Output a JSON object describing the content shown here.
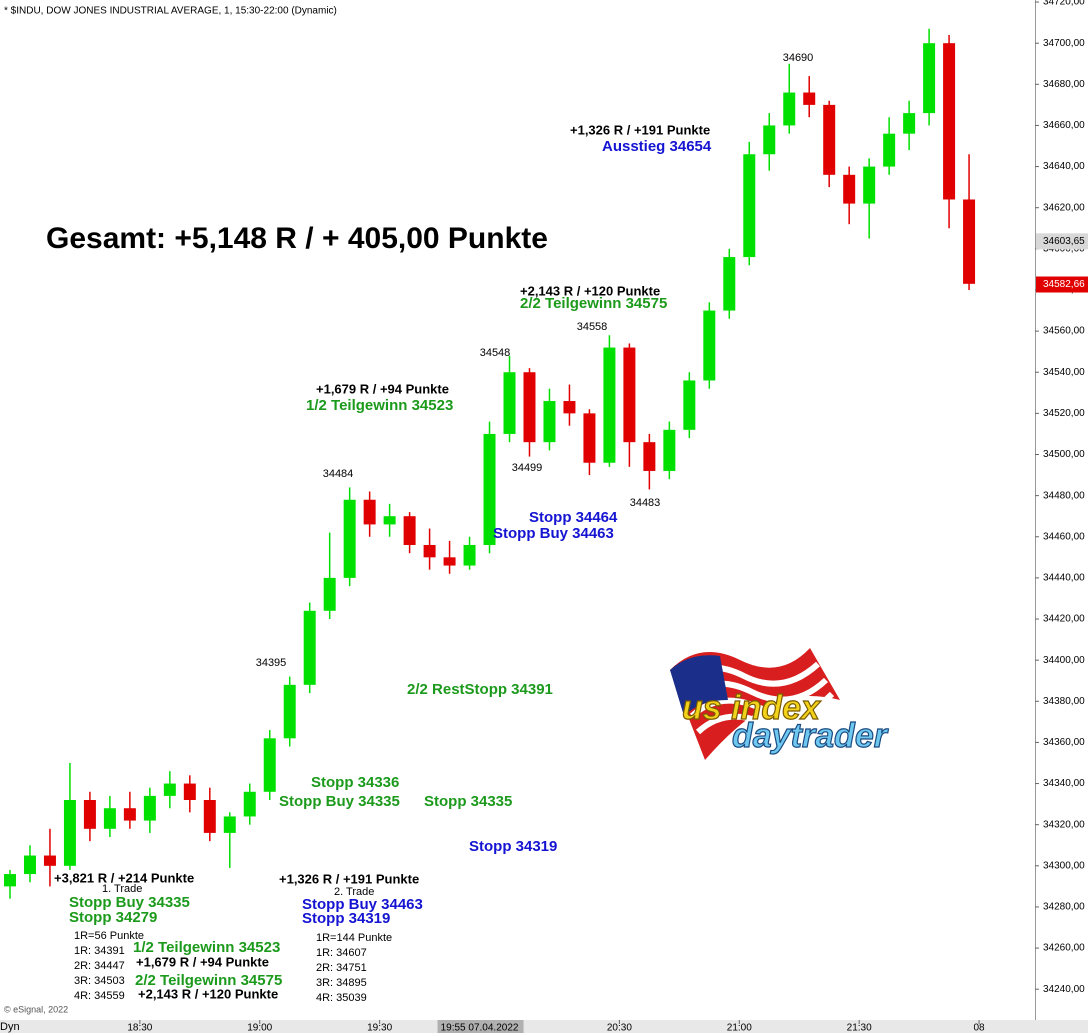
{
  "chart_data": {
    "type": "candlestick",
    "title": "* $INDU, DOW JONES INDUSTRIAL AVERAGE, 1, 15:30-22:00 (Dynamic)",
    "up_color": "#00e000",
    "down_color": "#e00000",
    "x": [
      "17:55",
      "18:00",
      "18:05",
      "18:10",
      "18:15",
      "18:20",
      "18:25",
      "18:30",
      "18:35",
      "18:40",
      "18:45",
      "18:50",
      "18:55",
      "19:00",
      "19:05",
      "19:10",
      "19:15",
      "19:20",
      "19:25",
      "19:30",
      "19:35",
      "19:40",
      "19:45",
      "19:50",
      "19:55",
      "20:00",
      "20:05",
      "20:10",
      "20:15",
      "20:20",
      "20:25",
      "20:30",
      "20:35",
      "20:40",
      "20:45",
      "20:50",
      "20:55",
      "21:00",
      "21:05",
      "21:10",
      "21:15",
      "21:20",
      "21:25",
      "21:30",
      "21:35",
      "21:40",
      "21:45",
      "21:50",
      "21:55"
    ],
    "open": [
      34290,
      34296,
      34305,
      34300,
      34332,
      34318,
      34328,
      34322,
      34334,
      34340,
      34332,
      34316,
      34324,
      34336,
      34362,
      34388,
      34424,
      34440,
      34478,
      34466,
      34470,
      34456,
      34450,
      34446,
      34456,
      34510,
      34540,
      34506,
      34526,
      34520,
      34496,
      34552,
      34506,
      34492,
      34512,
      34536,
      34570,
      34596,
      34646,
      34660,
      34676,
      34670,
      34636,
      34622,
      34640,
      34656,
      34666,
      34700,
      34624
    ],
    "high": [
      34298,
      34310,
      34318,
      34350,
      34336,
      34334,
      34336,
      34338,
      34346,
      34344,
      34338,
      34326,
      34340,
      34366,
      34392,
      34428,
      34462,
      34484,
      34482,
      34476,
      34472,
      34464,
      34458,
      34460,
      34516,
      34548,
      34542,
      34532,
      34534,
      34522,
      34558,
      34554,
      34510,
      34516,
      34540,
      34574,
      34600,
      34652,
      34666,
      34690,
      34684,
      34672,
      34640,
      34644,
      34664,
      34672,
      34707,
      34704,
      34646
    ],
    "low": [
      34284,
      34292,
      34290,
      34298,
      34312,
      34314,
      34318,
      34316,
      34328,
      34326,
      34312,
      34299,
      34320,
      34332,
      34358,
      34384,
      34420,
      34436,
      34460,
      34460,
      34452,
      34444,
      34442,
      34444,
      34452,
      34506,
      34499,
      34502,
      34514,
      34490,
      34494,
      34494,
      34483,
      34488,
      34508,
      34532,
      34566,
      34592,
      34638,
      34656,
      34664,
      34630,
      34612,
      34605,
      34636,
      34648,
      34660,
      34610,
      34580
    ],
    "close": [
      34296,
      34305,
      34300,
      34332,
      34318,
      34328,
      34322,
      34334,
      34340,
      34332,
      34316,
      34324,
      34336,
      34362,
      34388,
      34424,
      34440,
      34478,
      34466,
      34470,
      34456,
      34450,
      34446,
      34456,
      34510,
      34540,
      34506,
      34526,
      34520,
      34496,
      34552,
      34506,
      34492,
      34512,
      34536,
      34570,
      34596,
      34646,
      34660,
      34676,
      34670,
      34636,
      34622,
      34640,
      34656,
      34666,
      34700,
      34624,
      34583
    ],
    "xlim": [
      "17:55",
      "22:14"
    ],
    "xticks": [
      "18:30",
      "19:00",
      "19:30",
      {
        "value": "19:55",
        "label": "19:55 07.04.2022"
      },
      "20:30",
      "21:00",
      "21:30",
      {
        "value": "22:00",
        "label": "08"
      }
    ],
    "ylim": [
      34226,
      34721
    ],
    "yticks": [
      {
        "value": 34240,
        "label": "34240,00"
      },
      {
        "value": 34260,
        "label": "34260,00"
      },
      {
        "value": 34280,
        "label": "34280,00"
      },
      {
        "value": 34300,
        "label": "34300,00"
      },
      {
        "value": 34320,
        "label": "34320,00"
      },
      {
        "value": 34340,
        "label": "34340,00"
      },
      {
        "value": 34360,
        "label": "34360,00"
      },
      {
        "value": 34380,
        "label": "34380,00"
      },
      {
        "value": 34400,
        "label": "34400,00"
      },
      {
        "value": 34420,
        "label": "34420,00"
      },
      {
        "value": 34440,
        "label": "34440,00"
      },
      {
        "value": 34460,
        "label": "34460,00"
      },
      {
        "value": 34480,
        "label": "34480,00"
      },
      {
        "value": 34500,
        "label": "34500,00"
      },
      {
        "value": 34520,
        "label": "34520,00"
      },
      {
        "value": 34540,
        "label": "34540,00"
      },
      {
        "value": 34560,
        "label": "34560,00"
      },
      {
        "value": 34580,
        "label": "34580,00"
      },
      {
        "value": 34600,
        "label": "34600,00"
      },
      {
        "value": 34620,
        "label": "34620,00"
      },
      {
        "value": 34640,
        "label": "34640,00"
      },
      {
        "value": 34660,
        "label": "34660,00"
      },
      {
        "value": 34680,
        "label": "34680,00"
      },
      {
        "value": 34700,
        "label": "34700,00"
      },
      {
        "value": 34720,
        "label": "34720,00"
      }
    ],
    "price_markers": [
      {
        "value": 34603.65,
        "label": "34603,65",
        "color": "#d8d8d8"
      },
      {
        "value": 34582.66,
        "label": "34582,66",
        "color": "#e00000"
      }
    ],
    "annotations": [
      {
        "text": "Gesamt: +5,148 R / + 405,00 Punkte",
        "color": "#000000"
      },
      {
        "text": "34690",
        "color": "#000000"
      },
      {
        "text": "34548",
        "color": "#000000"
      },
      {
        "text": "34558",
        "color": "#000000"
      },
      {
        "text": "34484",
        "color": "#000000"
      },
      {
        "text": "34499",
        "color": "#000000"
      },
      {
        "text": "34483",
        "color": "#000000"
      },
      {
        "text": "34395",
        "color": "#000000"
      },
      {
        "text": "+1,326 R / +191 Punkte",
        "color": "#000000"
      },
      {
        "text": "Ausstieg 34654",
        "color": "#1414d2"
      },
      {
        "text": "+2,143 R / +120 Punkte",
        "color": "#000000"
      },
      {
        "text": "2/2 Teilgewinn 34575",
        "color": "#1c9a1c"
      },
      {
        "text": "+1,679 R / +94 Punkte",
        "color": "#000000"
      },
      {
        "text": "1/2 Teilgewinn 34523",
        "color": "#1c9a1c"
      },
      {
        "text": "Stopp 34464",
        "color": "#1414d2"
      },
      {
        "text": "Stopp Buy 34463",
        "color": "#1414d2"
      },
      {
        "text": "2/2 RestStopp 34391",
        "color": "#1c9a1c"
      },
      {
        "text": "Stopp 34336",
        "color": "#1c9a1c"
      },
      {
        "text": "Stopp Buy 34335",
        "color": "#1c9a1c"
      },
      {
        "text": "Stopp 34335",
        "color": "#1c9a1c"
      },
      {
        "text": "Stopp 34319",
        "color": "#1414d2"
      },
      {
        "text": "+3,821 R / +214 Punkte",
        "color": "#000000"
      },
      {
        "text": "1. Trade",
        "color": "#000000"
      },
      {
        "text": "Stopp Buy 34335",
        "color": "#1c9a1c"
      },
      {
        "text": "Stopp 34279",
        "color": "#1c9a1c"
      },
      {
        "text": "1R=56 Punkte",
        "color": "#000000"
      },
      {
        "text": "1R: 34391",
        "color": "#000000"
      },
      {
        "text": "2R: 34447",
        "color": "#000000"
      },
      {
        "text": "3R: 34503",
        "color": "#000000"
      },
      {
        "text": "4R: 34559",
        "color": "#000000"
      },
      {
        "text": "1/2 Teilgewinn 34523",
        "color": "#1c9a1c"
      },
      {
        "text": "+1,679 R / +94 Punkte",
        "color": "#000000"
      },
      {
        "text": "2/2 Teilgewinn 34575",
        "color": "#1c9a1c"
      },
      {
        "text": "+2,143 R / +120 Punkte",
        "color": "#000000"
      },
      {
        "text": "+1,326 R / +191 Punkte",
        "color": "#000000"
      },
      {
        "text": "2. Trade",
        "color": "#000000"
      },
      {
        "text": "Stopp Buy 34463",
        "color": "#1414d2"
      },
      {
        "text": "Stopp 34319",
        "color": "#1414d2"
      },
      {
        "text": "1R=144 Punkte",
        "color": "#000000"
      },
      {
        "text": "1R: 34607",
        "color": "#000000"
      },
      {
        "text": "2R: 34751",
        "color": "#000000"
      },
      {
        "text": "3R: 34895",
        "color": "#000000"
      },
      {
        "text": "4R: 35039",
        "color": "#000000"
      }
    ],
    "copyright": "© eSignal, 2022",
    "footer_label": "Dyn",
    "logo": {
      "line1": "us index",
      "line2": "daytrader"
    }
  }
}
